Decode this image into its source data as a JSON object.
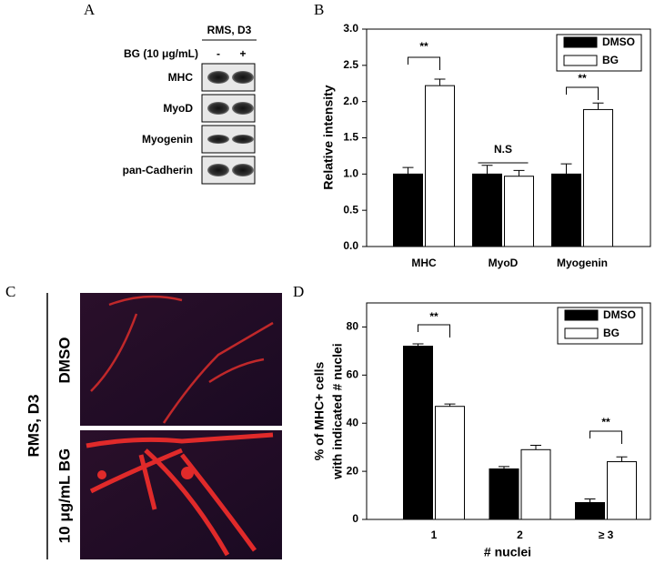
{
  "panels": {
    "a": "A",
    "b": "B",
    "c": "C",
    "d": "D"
  },
  "blot": {
    "header": "RMS, D3",
    "treatment": "BG (10 μg/mL)",
    "lanes": [
      "-",
      "+"
    ],
    "rows": [
      "MHC",
      "MyoD",
      "Myogenin",
      "pan-Cadherin"
    ]
  },
  "images": {
    "side_label": "RMS, D3",
    "rows": [
      "DMSO",
      "10 μg/mL BG"
    ]
  },
  "chart_data": [
    {
      "type": "bar",
      "categories": [
        "MHC",
        "MyoD",
        "Myogenin"
      ],
      "ylabel": "Relative intensity",
      "series": [
        {
          "name": "DMSO",
          "color": "#000000",
          "values": [
            1.0,
            1.0,
            1.0
          ],
          "errors": [
            0.09,
            0.12,
            0.14
          ]
        },
        {
          "name": "BG",
          "color": "#ffffff",
          "values": [
            2.22,
            0.97,
            1.89
          ],
          "errors": [
            0.09,
            0.08,
            0.09
          ]
        }
      ],
      "ylim": [
        0,
        3
      ],
      "yticks": [
        {
          "value": 0,
          "label": "0.0"
        },
        {
          "value": 0.5,
          "label": "0.5"
        },
        {
          "value": 1,
          "label": "1.0"
        },
        {
          "value": 1.5,
          "label": "1.5"
        },
        {
          "value": 2,
          "label": "2.0"
        },
        {
          "value": 2.5,
          "label": "2.5"
        },
        {
          "value": 3,
          "label": "3.0"
        }
      ],
      "annotations": [
        "**",
        "N.S",
        "**"
      ],
      "legend": "upper right"
    },
    {
      "type": "bar",
      "categories": [
        "1",
        "2",
        "≥ 3"
      ],
      "xlabel": "# nuclei",
      "ylabel": [
        "% of MHC+ cells",
        "with indicated # nuclei"
      ],
      "series": [
        {
          "name": "DMSO",
          "color": "#000000",
          "values": [
            72,
            21,
            7
          ],
          "errors": [
            1,
            1,
            1.5
          ]
        },
        {
          "name": "BG",
          "color": "#ffffff",
          "values": [
            47,
            29,
            24
          ],
          "errors": [
            1,
            1.8,
            2
          ]
        }
      ],
      "ylim": [
        0,
        90
      ],
      "yticks": [
        0,
        20,
        40,
        60,
        80
      ],
      "annotations": [
        "**",
        "**"
      ],
      "legend": "upper right"
    }
  ]
}
